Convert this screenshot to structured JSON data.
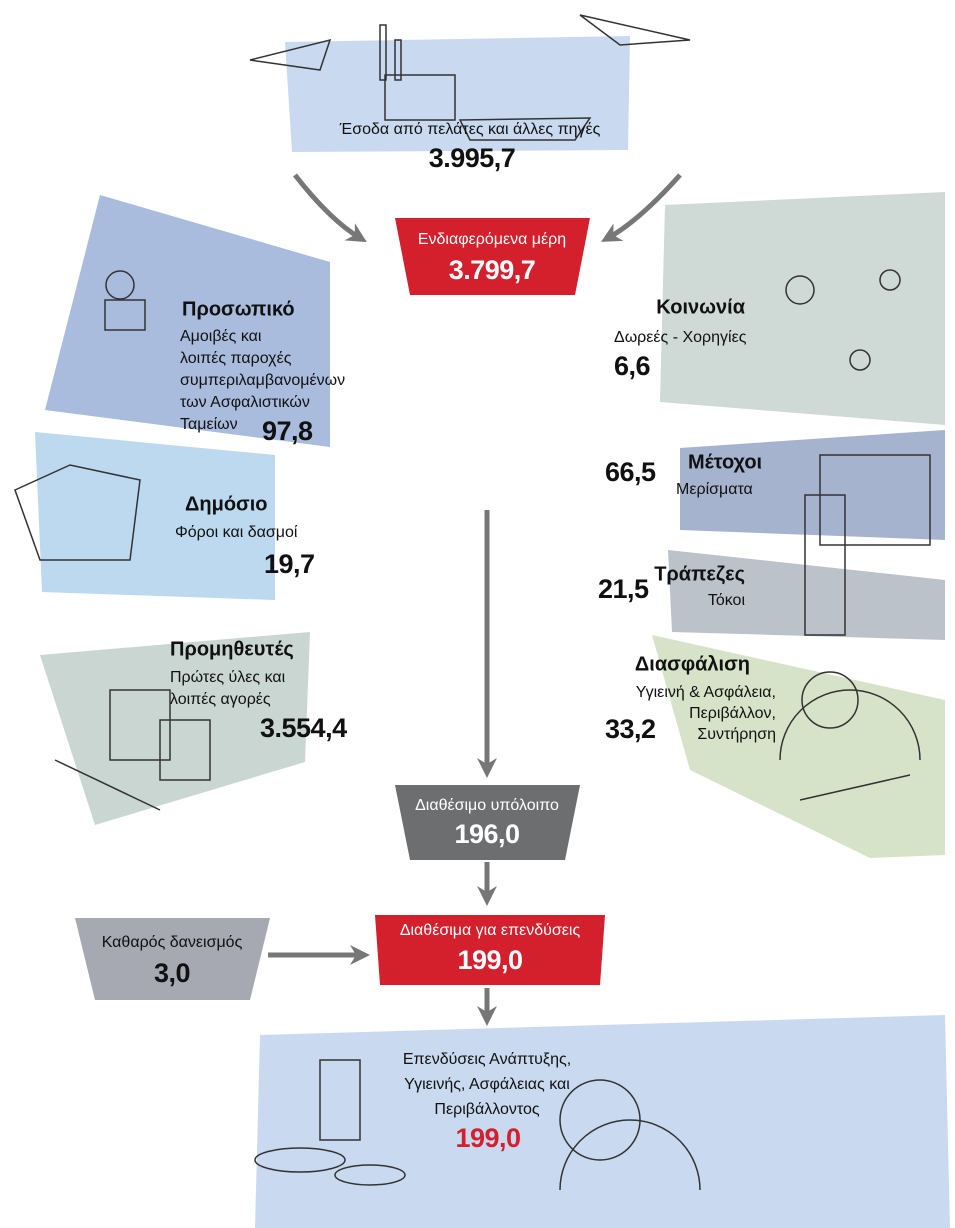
{
  "income": {
    "label": "Έσοδα από πελάτες και άλλες πηγές",
    "value": "3.995,7"
  },
  "stakeholders": {
    "label": "Ενδιαφερόμενα μέρη",
    "value": "3.799,7"
  },
  "staff": {
    "title": "Προσωπικό",
    "lines": [
      "Αμοιβές και",
      "λοιπές παροχές",
      "συμπεριλαμβανομένων",
      "των Ασφαλιστικών",
      "Ταμείων"
    ],
    "value": "97,8"
  },
  "society": {
    "title": "Κοινωνία",
    "lines": [
      "Δωρεές - Χορηγίες"
    ],
    "value": "6,6"
  },
  "public": {
    "title": "Δημόσιο",
    "lines": [
      "Φόροι και δασμοί"
    ],
    "value": "19,7"
  },
  "shareholders": {
    "title": "Μέτοχοι",
    "lines": [
      "Μερίσματα"
    ],
    "value": "66,5"
  },
  "banks": {
    "title": "Τράπεζες",
    "lines": [
      "Τόκοι"
    ],
    "value": "21,5"
  },
  "suppliers": {
    "title": "Προμηθευτές",
    "lines": [
      "Πρώτες ύλες και",
      "λοιπές αγορές"
    ],
    "value": "3.554,4"
  },
  "insurance": {
    "title": "Διασφάλιση",
    "lines": [
      "Υγιεινή & Ασφάλεια,",
      "Περιβάλλον,",
      "Συντήρηση"
    ],
    "value": "33,2"
  },
  "balance": {
    "label": "Διαθέσιμο υπόλοιπο",
    "value": "196,0"
  },
  "borrowing": {
    "label": "Καθαρός δανεισμός",
    "value": "3,0"
  },
  "available": {
    "label": "Διαθέσιμα για επενδύσεις",
    "value": "199,0"
  },
  "investments": {
    "lines": [
      "Επενδύσεις Ανάπτυξης,",
      "Υγιεινής, Ασφάλειας και",
      "Περιβάλλοντος"
    ],
    "value": "199,0"
  }
}
